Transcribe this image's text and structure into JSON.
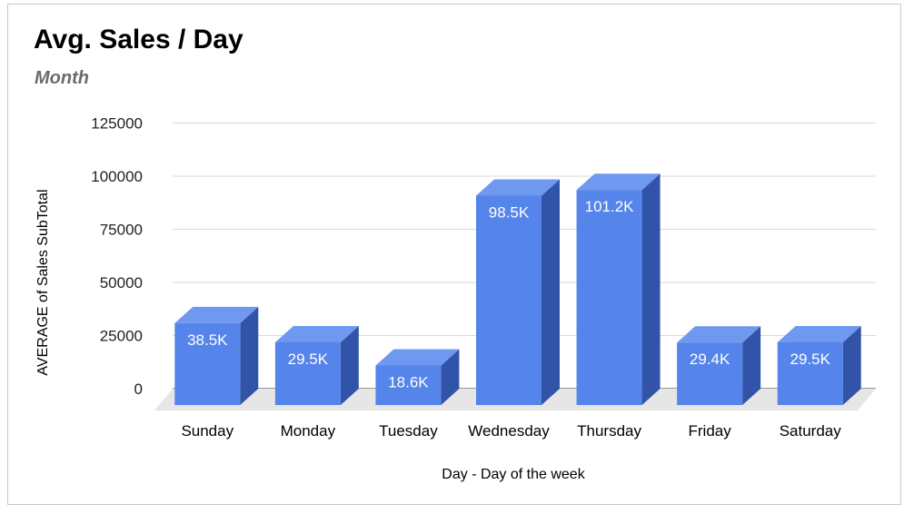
{
  "chart_data": {
    "type": "bar",
    "title": "Avg. Sales / Day",
    "subtitle": "Month",
    "xlabel": "Day - Day of the week",
    "ylabel": "AVERAGE of Sales SubTotal",
    "categories": [
      "Sunday",
      "Monday",
      "Tuesday",
      "Wednesday",
      "Thursday",
      "Friday",
      "Saturday"
    ],
    "values": [
      38500,
      29500,
      18600,
      98500,
      101200,
      29400,
      29500
    ],
    "data_labels": [
      "38.5K",
      "29.5K",
      "18.6K",
      "98.5K",
      "101.2K",
      "29.4K",
      "29.5K"
    ],
    "yticks": [
      "0",
      "25000",
      "50000",
      "75000",
      "100000",
      "125000"
    ],
    "ylim": [
      0,
      125000
    ],
    "grid": true,
    "style": "3d",
    "colors": {
      "bar_front": "#5585ea",
      "bar_top": "#6f99f0",
      "bar_side": "#3254a8",
      "floor": "#e6e6e6",
      "grid": "#d9d9d9"
    }
  }
}
